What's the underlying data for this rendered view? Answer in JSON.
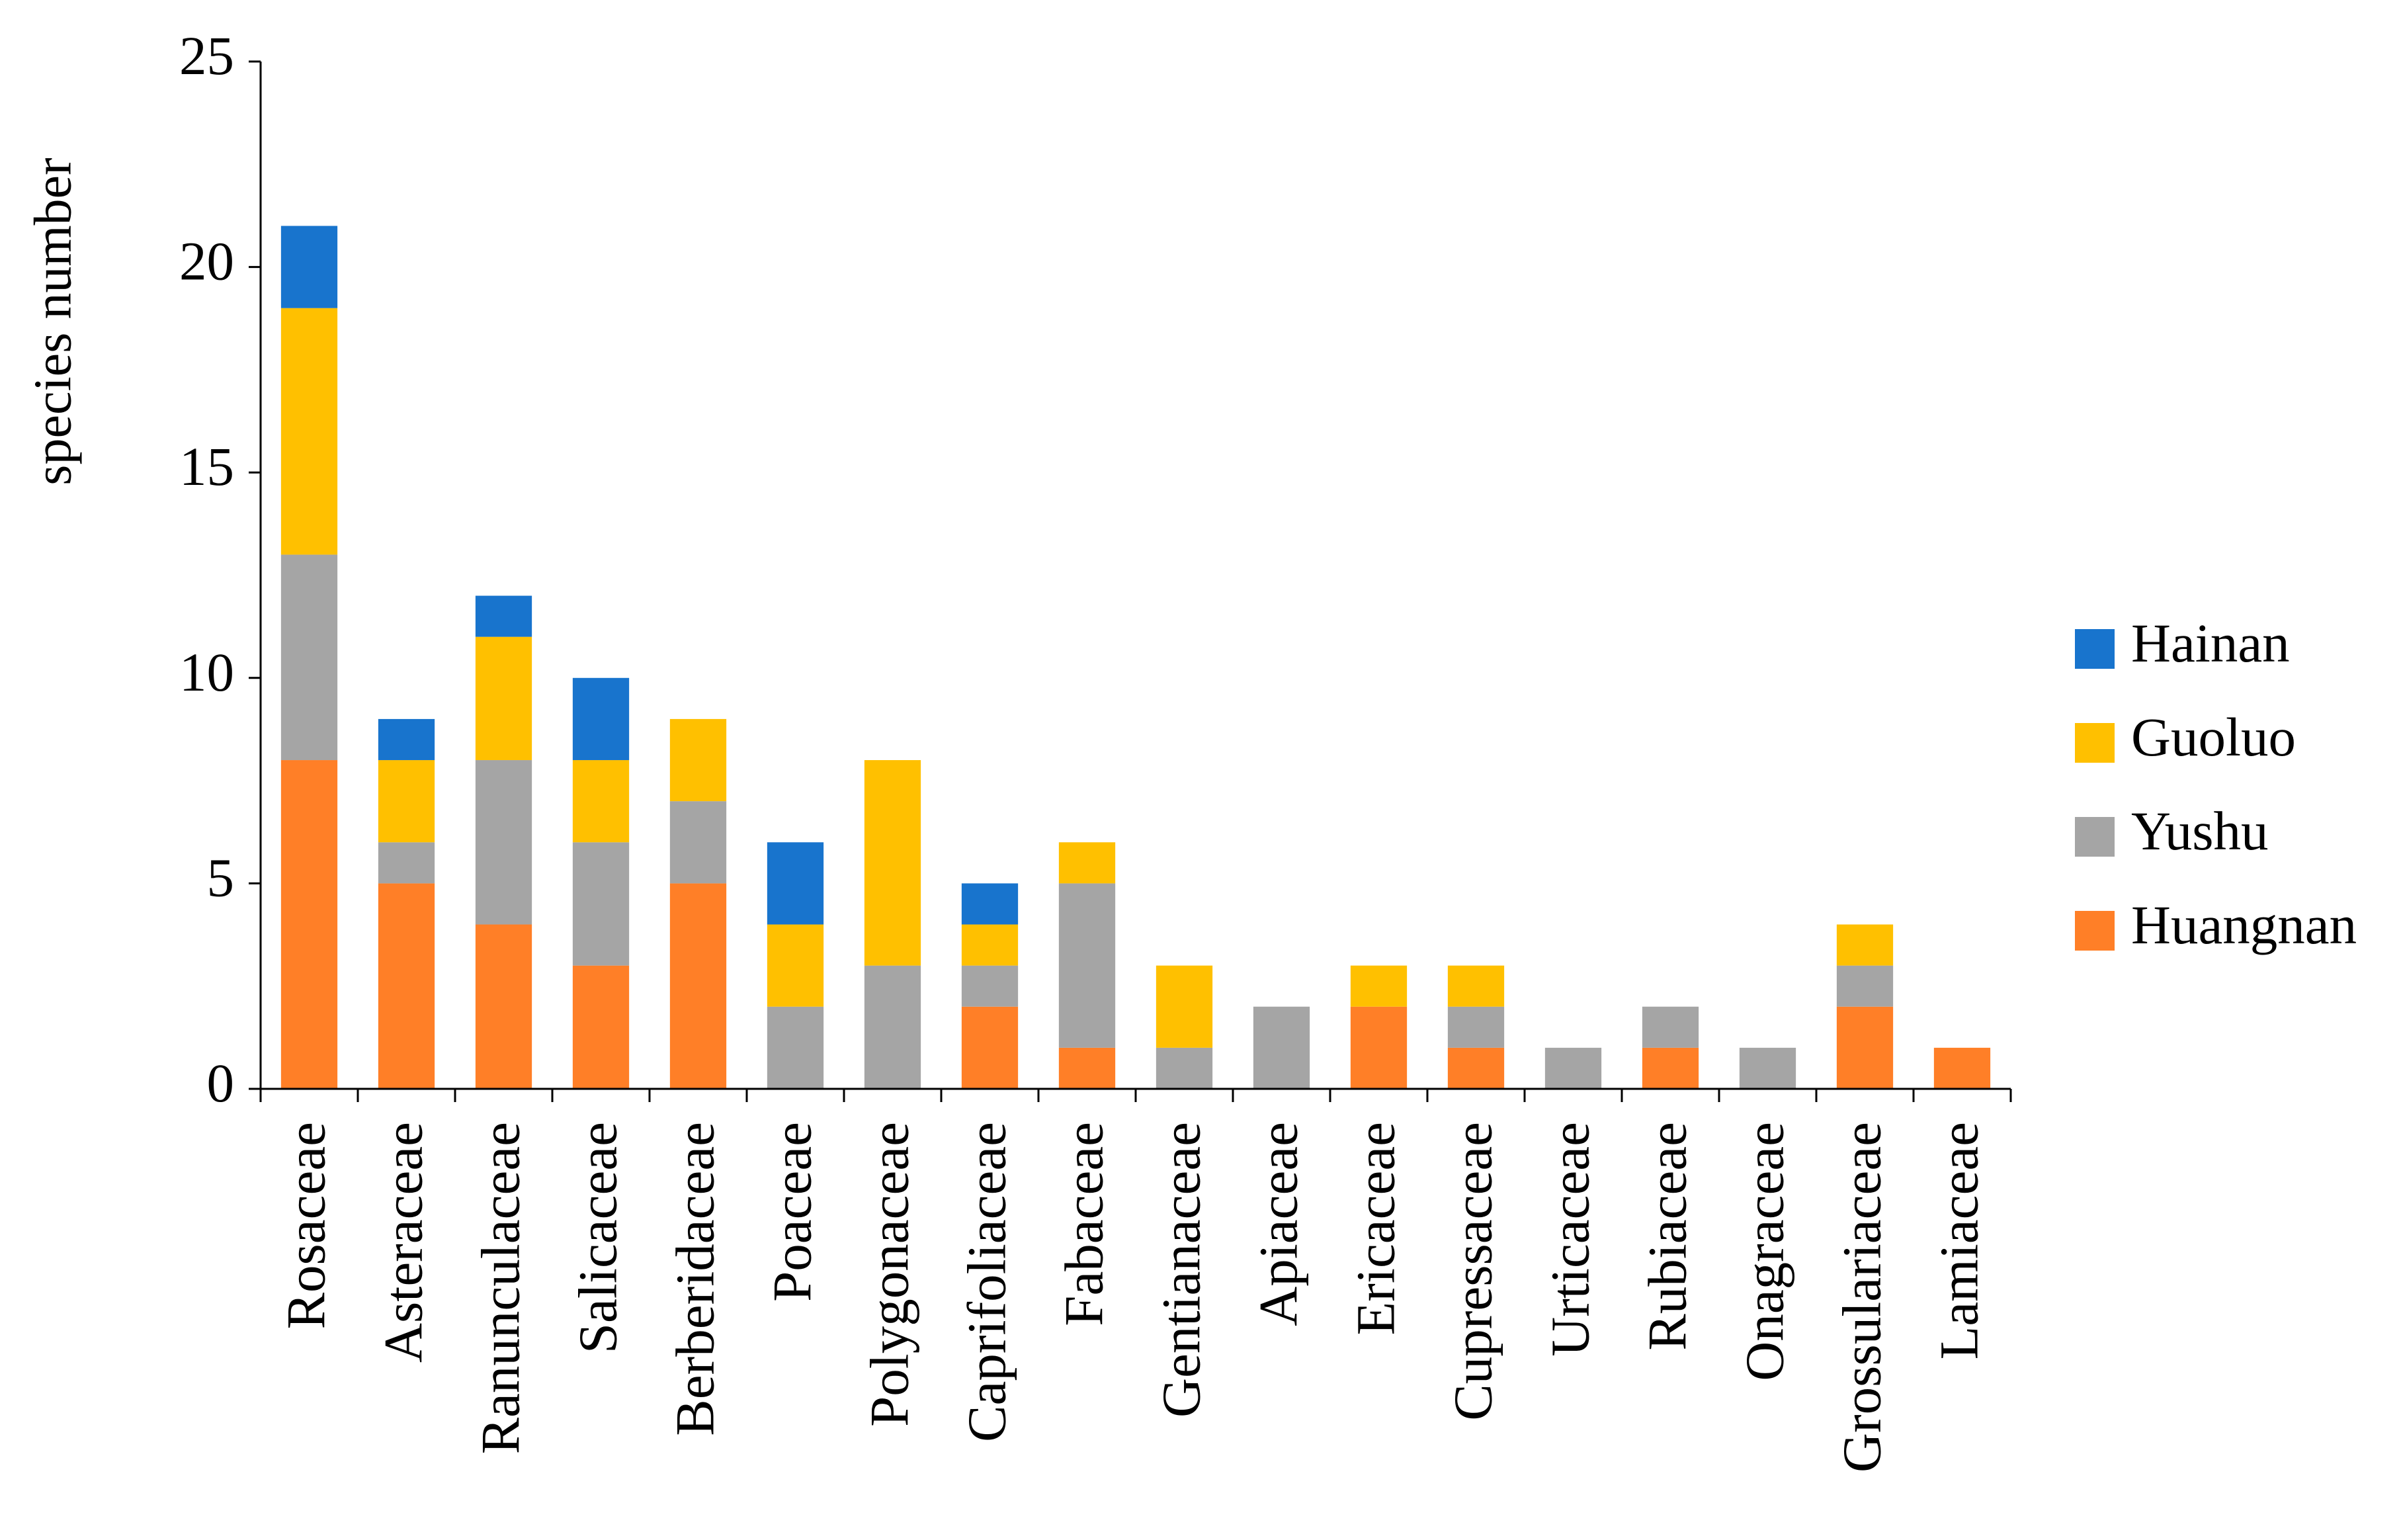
{
  "chart_data": {
    "type": "stacked_bar",
    "y_label": "species number",
    "categories": [
      "Rosaceae",
      "Asteraceae",
      "Ranunculaceae",
      "Salicaceae",
      "Berberidaceae",
      "Poaceae",
      "Polygonaceae",
      "Caprifoliaceae",
      "Fabaceae",
      "Gentianaceae",
      "Apiaceae",
      "Ericaceae",
      "Cupressaceae",
      "Urticaceae",
      "Rubiaceae",
      "Onagraceae",
      "Grossulariaceae",
      "Lamiaceae"
    ],
    "series": [
      {
        "name": "Huangnan",
        "color": "#FF7F27",
        "values": [
          8,
          5,
          4,
          3,
          5,
          0,
          0,
          2,
          1,
          0,
          0,
          2,
          1,
          0,
          1,
          0,
          2,
          1
        ]
      },
      {
        "name": "Yushu",
        "color": "#A5A5A5",
        "values": [
          5,
          1,
          4,
          3,
          2,
          2,
          3,
          1,
          4,
          1,
          2,
          0,
          1,
          1,
          1,
          1,
          1,
          0
        ]
      },
      {
        "name": "Guoluo",
        "color": "#FFC000",
        "values": [
          6,
          2,
          3,
          2,
          2,
          2,
          5,
          1,
          1,
          2,
          0,
          1,
          1,
          0,
          0,
          0,
          1,
          0
        ]
      },
      {
        "name": "Hainan",
        "color": "#1874CD",
        "values": [
          2,
          1,
          1,
          2,
          0,
          2,
          0,
          1,
          0,
          0,
          0,
          0,
          0,
          0,
          0,
          0,
          0,
          0
        ]
      }
    ],
    "ylim": [
      0,
      25
    ],
    "yticks": [
      0,
      5,
      10,
      15,
      20,
      25
    ],
    "grid": false,
    "legend": "right"
  }
}
